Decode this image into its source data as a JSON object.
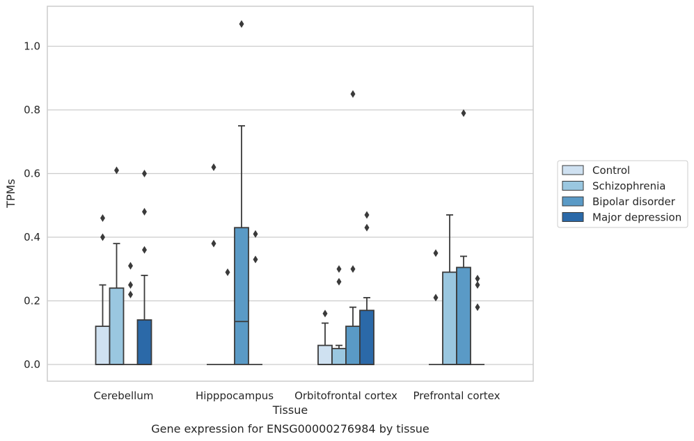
{
  "chart_data": {
    "type": "box",
    "title": "",
    "caption": "Gene expression for ENSG00000276984 by tissue",
    "xlabel": "Tissue",
    "ylabel": "TPMs",
    "ylim": [
      -0.05,
      1.13
    ],
    "yticks": [
      0.0,
      0.2,
      0.4,
      0.6,
      0.8,
      1.0
    ],
    "ytick_labels": [
      "0.0",
      "0.2",
      "0.4",
      "0.6",
      "0.8",
      "1.0"
    ],
    "grid": "horizontal",
    "legend_position": "right",
    "categories": [
      "Cerebellum",
      "Hipppocampus",
      "Orbitofrontal cortex",
      "Prefrontal cortex"
    ],
    "series": [
      {
        "name": "Control",
        "color": "#cfe1f1",
        "boxes": [
          {
            "q1": 0.0,
            "median": 0.0,
            "q3": 0.12,
            "whisker_low": 0.0,
            "whisker_high": 0.25,
            "outliers": [
              0.4,
              0.46
            ]
          },
          {
            "q1": 0.0,
            "median": 0.0,
            "q3": 0.0,
            "whisker_low": 0.0,
            "whisker_high": 0.0,
            "outliers": [
              0.38,
              0.62
            ]
          },
          {
            "q1": 0.0,
            "median": 0.0,
            "q3": 0.06,
            "whisker_low": 0.0,
            "whisker_high": 0.13,
            "outliers": [
              0.16
            ]
          },
          {
            "q1": 0.0,
            "median": 0.0,
            "q3": 0.0,
            "whisker_low": 0.0,
            "whisker_high": 0.0,
            "outliers": [
              0.21,
              0.35
            ]
          }
        ]
      },
      {
        "name": "Schizophrenia",
        "color": "#9ac7e0",
        "boxes": [
          {
            "q1": 0.0,
            "median": 0.0,
            "q3": 0.24,
            "whisker_low": 0.0,
            "whisker_high": 0.38,
            "outliers": [
              0.61
            ]
          },
          {
            "q1": 0.0,
            "median": 0.0,
            "q3": 0.0,
            "whisker_low": 0.0,
            "whisker_high": 0.0,
            "outliers": [
              0.29
            ]
          },
          {
            "q1": 0.0,
            "median": 0.0,
            "q3": 0.05,
            "whisker_low": 0.0,
            "whisker_high": 0.06,
            "outliers": [
              0.26,
              0.3
            ]
          },
          {
            "q1": 0.0,
            "median": 0.0,
            "q3": 0.29,
            "whisker_low": 0.0,
            "whisker_high": 0.47,
            "outliers": []
          }
        ]
      },
      {
        "name": "Bipolar disorder",
        "color": "#5a9ac6",
        "boxes": [
          {
            "q1": 0.0,
            "median": 0.0,
            "q3": 0.0,
            "whisker_low": 0.0,
            "whisker_high": 0.0,
            "outliers": [
              0.22,
              0.25,
              0.31
            ]
          },
          {
            "q1": 0.0,
            "median": 0.135,
            "q3": 0.43,
            "whisker_low": 0.0,
            "whisker_high": 0.75,
            "outliers": [
              1.07
            ]
          },
          {
            "q1": 0.0,
            "median": 0.0,
            "q3": 0.12,
            "whisker_low": 0.0,
            "whisker_high": 0.18,
            "outliers": [
              0.3,
              0.85
            ]
          },
          {
            "q1": 0.0,
            "median": 0.0,
            "q3": 0.305,
            "whisker_low": 0.0,
            "whisker_high": 0.34,
            "outliers": [
              0.79
            ]
          }
        ]
      },
      {
        "name": "Major depression",
        "color": "#2b69a8",
        "boxes": [
          {
            "q1": 0.0,
            "median": 0.0,
            "q3": 0.14,
            "whisker_low": 0.0,
            "whisker_high": 0.28,
            "outliers": [
              0.36,
              0.48,
              0.6
            ]
          },
          {
            "q1": 0.0,
            "median": 0.0,
            "q3": 0.0,
            "whisker_low": 0.0,
            "whisker_high": 0.0,
            "outliers": [
              0.33,
              0.41
            ]
          },
          {
            "q1": 0.0,
            "median": 0.0,
            "q3": 0.17,
            "whisker_low": 0.0,
            "whisker_high": 0.21,
            "outliers": [
              0.43,
              0.47
            ]
          },
          {
            "q1": 0.0,
            "median": 0.0,
            "q3": 0.0,
            "whisker_low": 0.0,
            "whisker_high": 0.0,
            "outliers": [
              0.18,
              0.25,
              0.27
            ]
          }
        ]
      }
    ]
  }
}
